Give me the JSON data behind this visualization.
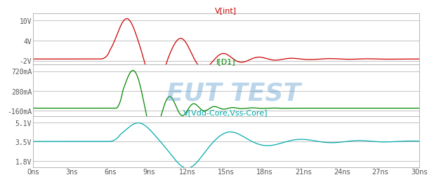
{
  "title1": "V[int]",
  "title2": "I[D1]",
  "title3": "V[Vdd-Core,Vss-Core]",
  "color1": "#cc0000",
  "color2": "#008800",
  "color3": "#00aaaa",
  "watermark": "EUT TEST",
  "watermark_color": "#5599cc",
  "watermark_alpha": 0.4,
  "xlim": [
    0,
    30
  ],
  "xticks": [
    0,
    3,
    6,
    9,
    12,
    15,
    18,
    21,
    24,
    27,
    30
  ],
  "xlabels": [
    "0ns",
    "3ns",
    "6ns",
    "9ns",
    "12ns",
    "15ns",
    "18ns",
    "21ns",
    "24ns",
    "27ns",
    "30ns"
  ],
  "yticks1": [
    -2,
    4,
    10
  ],
  "ylabels1": [
    "-2V",
    "4V",
    "10V"
  ],
  "ylim1": [
    -3.2,
    12.0
  ],
  "yticks2": [
    -160,
    280,
    720
  ],
  "ylabels2": [
    "-160mA",
    "280mA",
    "720mA"
  ],
  "ylim2": [
    -270,
    860
  ],
  "yticks3": [
    1.8,
    3.5,
    5.1
  ],
  "ylabels3": [
    "1.8V",
    "3.5V",
    "5.1V"
  ],
  "ylim3": [
    1.3,
    5.7
  ],
  "bg_color": "#ffffff",
  "grid_color": "#aaaaaa",
  "tick_label_color": "#555555",
  "title_fontsize": 8,
  "tick_fontsize": 7
}
